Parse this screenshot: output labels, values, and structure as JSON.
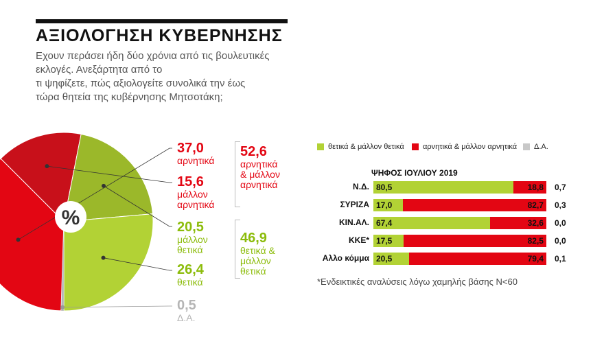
{
  "header": {
    "title": "ΑΞΙΟΛΟΓΗΣΗ ΚΥΒΕΡΝΗΣΗΣ",
    "subtitle_lines": [
      "Εχουν περάσει ήδη δύο χρόνια από τις βουλευτικές",
      "εκλογές. Ανεξάρτητα από το",
      "τι ψηφίζετε, πώς αξιολογείτε συνολικά την έως",
      "τώρα θητεία της κυβέρνησης Μητσοτάκη;"
    ]
  },
  "colors": {
    "red": "#e30613",
    "dark_red": "#c8101a",
    "green": "#b2d235",
    "dark_green": "#9bb82a",
    "gray": "#b5b5b5"
  },
  "pie_center_label": "%",
  "pie_labels": {
    "negative": {
      "value": "37,0",
      "text": "αρνητικά"
    },
    "rather_negative": {
      "value": "15,6",
      "text": [
        "μάλλον",
        "αρνητικά"
      ]
    },
    "rather_positive": {
      "value": "20,5",
      "text": [
        "μάλλον",
        "θετικά"
      ]
    },
    "positive": {
      "value": "26,4",
      "text": "θετικά"
    },
    "dk": {
      "value": "0,5",
      "text": "Δ.Α."
    },
    "total_negative": {
      "value": "52,6",
      "text": [
        "αρνητικά",
        "& μάλλον",
        "αρνητικά"
      ]
    },
    "total_positive": {
      "value": "46,9",
      "text": [
        "θετικά &",
        "μάλλον",
        "θετικά"
      ]
    }
  },
  "legend": {
    "positive": "θετικά & μάλλον θετικά",
    "negative": "αρνητικά & μάλλον αρνητικά",
    "dk": "Δ.Α."
  },
  "footnote": "*Ενδεικτικές αναλύσεις λόγω χαμηλής βάσης Ν<60",
  "chart_data": [
    {
      "type": "pie",
      "title": "ΑΞΙΟΛΟΓΗΣΗ ΚΥΒΕΡΝΗΣΗΣ",
      "categories": [
        "αρνητικά",
        "μάλλον αρνητικά",
        "μάλλον θετικά",
        "θετικά",
        "Δ.Α."
      ],
      "values": [
        37.0,
        15.6,
        20.5,
        26.4,
        0.5
      ]
    },
    {
      "type": "bar",
      "orientation": "horizontal",
      "stacked": true,
      "title": "ΨΗΦΟΣ ΙΟΥΛΙΟΥ 2019",
      "categories": [
        "Ν.Δ.",
        "ΣΥΡΙΖΑ",
        "ΚΙΝ.ΑΛ.",
        "ΚΚΕ*",
        "Αλλο κόμμα"
      ],
      "series": [
        {
          "name": "θετικά & μάλλον θετικά",
          "values": [
            80.5,
            17.0,
            67.4,
            17.5,
            20.5
          ],
          "labels": [
            "80,5",
            "17,0",
            "67,4",
            "17,5",
            "20,5"
          ]
        },
        {
          "name": "αρνητικά & μάλλον αρνητικά",
          "values": [
            18.8,
            82.7,
            32.6,
            82.5,
            79.4
          ],
          "labels": [
            "18,8",
            "82,7",
            "32,6",
            "82,5",
            "79,4"
          ]
        },
        {
          "name": "Δ.Α.",
          "values": [
            0.7,
            0.3,
            0.0,
            0.0,
            0.1
          ],
          "labels": [
            "0,7",
            "0,3",
            "0,0",
            "0,0",
            "0,1"
          ]
        }
      ]
    }
  ]
}
